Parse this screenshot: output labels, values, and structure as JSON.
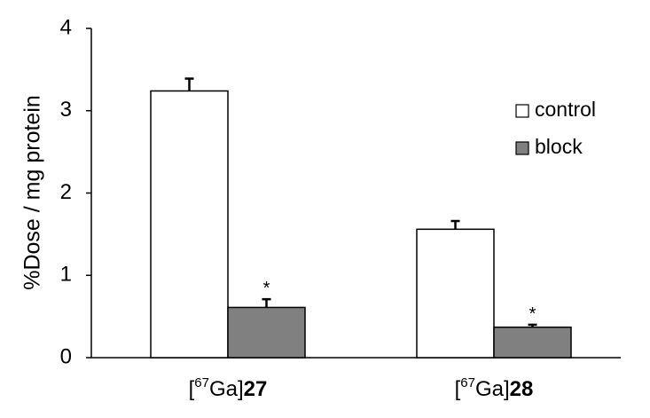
{
  "chart_data": {
    "type": "bar",
    "ylabel": "%Dose / mg protein",
    "ylim": [
      0,
      4
    ],
    "yticks": [
      "0",
      "1",
      "2",
      "3",
      "4"
    ],
    "categories": [
      {
        "prefix": "[",
        "sup": "67",
        "mid": "Ga]",
        "num": "27"
      },
      {
        "prefix": "[",
        "sup": "67",
        "mid": "Ga]",
        "num": "28"
      }
    ],
    "series": [
      {
        "name": "control",
        "color": "#ffffff",
        "values": [
          3.24,
          1.56
        ],
        "errors": [
          0.15,
          0.1
        ],
        "markers": [
          "",
          ""
        ]
      },
      {
        "name": "block",
        "color": "#808080",
        "values": [
          0.61,
          0.37
        ],
        "errors": [
          0.1,
          0.03
        ],
        "markers": [
          "*",
          "*"
        ]
      }
    ],
    "legend_position": "right",
    "grid": false
  }
}
